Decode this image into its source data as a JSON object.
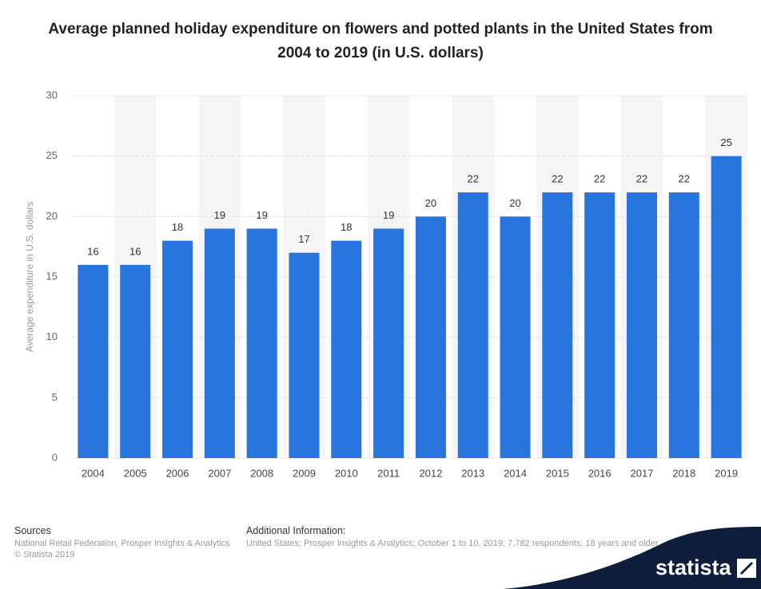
{
  "chart_data": {
    "type": "bar",
    "title": "Average planned holiday expenditure on flowers and potted plants in the United States from 2004 to 2019 (in U.S. dollars)",
    "y_label": "Average expenditure in U.S. dollars",
    "categories": [
      "2004",
      "2005",
      "2006",
      "2007",
      "2008",
      "2009",
      "2010",
      "2011",
      "2012",
      "2013",
      "2014",
      "2015",
      "2016",
      "2017",
      "2018",
      "2019"
    ],
    "values": [
      16,
      16,
      18,
      19,
      19,
      17,
      18,
      19,
      20,
      22,
      20,
      22,
      22,
      22,
      22,
      25
    ],
    "color": "#2876dd",
    "ylim": [
      0,
      30
    ],
    "yticks": [
      0,
      5,
      10,
      15,
      20,
      25,
      30
    ],
    "grid": true
  },
  "footer": {
    "sources_title": "Sources",
    "sources": "National Retail Federation; Prosper Insights & Analytics",
    "copyright": "© Statista 2019",
    "info_title": "Additional Information:",
    "info": "United States; Prosper Insights & Analytics; October 1 to 10, 2019; 7,782 respondents; 18 years and older",
    "logo": "statista"
  }
}
